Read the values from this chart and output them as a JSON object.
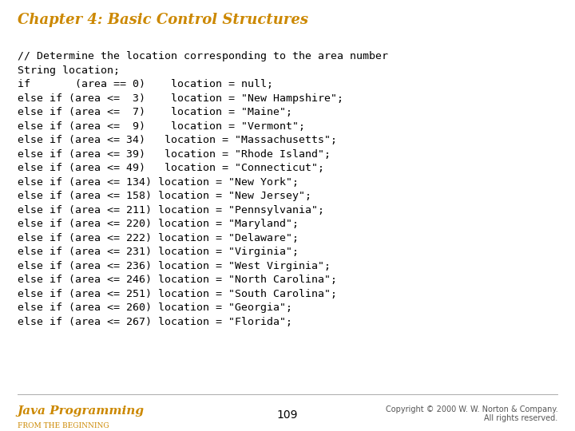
{
  "title": "Chapter 4: Basic Control Structures",
  "title_color": "#CC8800",
  "title_fontsize": 13,
  "bg_color": "#FFFFFF",
  "code_lines": [
    "// Determine the location corresponding to the area number",
    "String location;",
    "if       (area == 0)    location = null;",
    "else if (area <=  3)    location = \"New Hampshire\";",
    "else if (area <=  7)    location = \"Maine\";",
    "else if (area <=  9)    location = \"Vermont\";",
    "else if (area <= 34)   location = \"Massachusetts\";",
    "else if (area <= 39)   location = \"Rhode Island\";",
    "else if (area <= 49)   location = \"Connecticut\";",
    "else if (area <= 134) location = \"New York\";",
    "else if (area <= 158) location = \"New Jersey\";",
    "else if (area <= 211) location = \"Pennsylvania\";",
    "else if (area <= 220) location = \"Maryland\";",
    "else if (area <= 222) location = \"Delaware\";",
    "else if (area <= 231) location = \"Virginia\";",
    "else if (area <= 236) location = \"West Virginia\";",
    "else if (area <= 246) location = \"North Carolina\";",
    "else if (area <= 251) location = \"South Carolina\";",
    "else if (area <= 260) location = \"Georgia\";",
    "else if (area <= 267) location = \"Florida\";"
  ],
  "code_color": "#000000",
  "code_fontsize": 9.5,
  "footer_left_title": "Java Programming",
  "footer_left_subtitle": "FROM THE BEGINNING",
  "footer_left_color": "#CC8800",
  "footer_center": "109",
  "footer_center_color": "#000000",
  "footer_right": "Copyright © 2000 W. W. Norton & Company.\nAll rights reserved.",
  "footer_right_color": "#555555"
}
